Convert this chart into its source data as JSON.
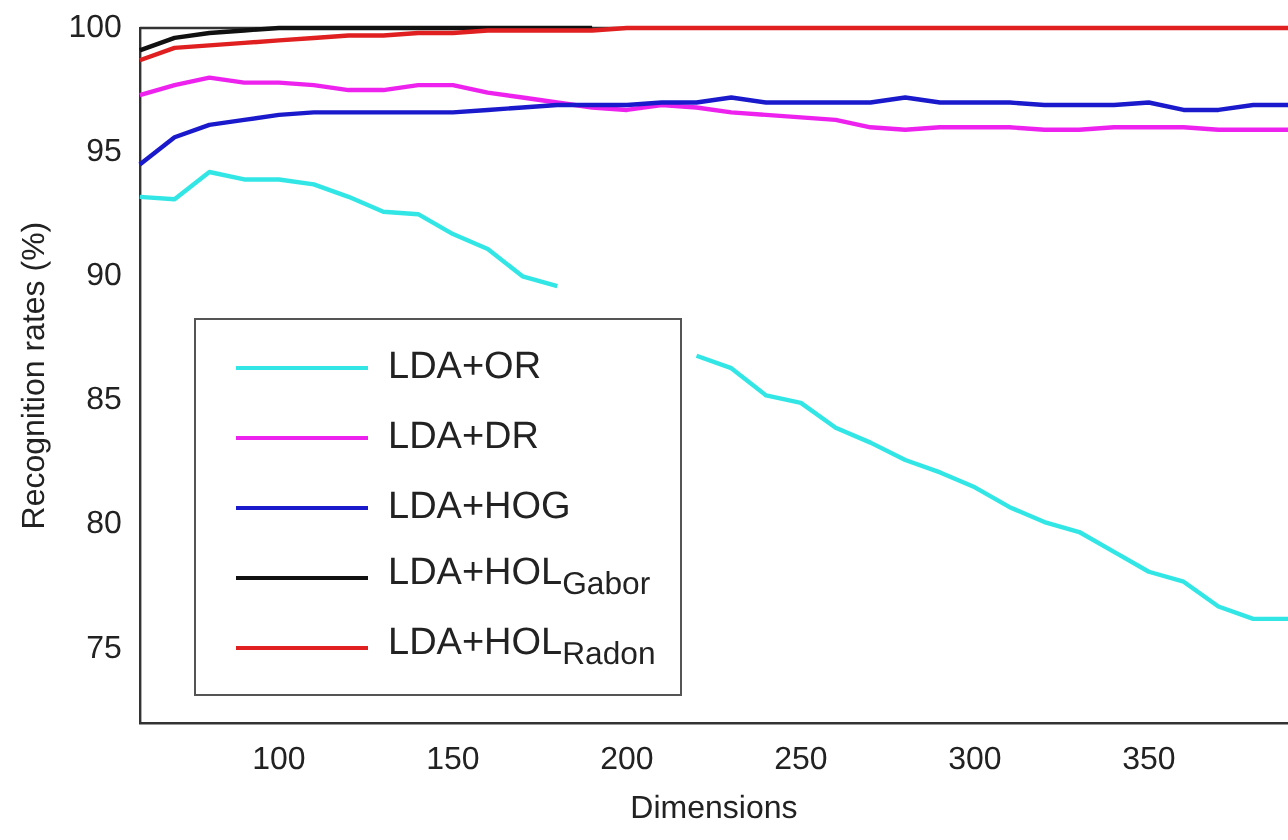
{
  "chart_data": {
    "type": "line",
    "xlabel": "Dimensions",
    "ylabel": "Recognition rates (%)",
    "x": [
      60,
      70,
      80,
      90,
      100,
      110,
      120,
      130,
      140,
      150,
      160,
      170,
      180,
      190,
      200,
      210,
      220,
      230,
      240,
      250,
      260,
      270,
      280,
      290,
      300,
      310,
      320,
      330,
      340,
      350,
      360,
      370,
      380,
      390
    ],
    "series": [
      {
        "name": "LDA+OR",
        "color": "#33e6e6",
        "values": [
          93.2,
          93.1,
          94.2,
          93.9,
          93.9,
          93.7,
          93.2,
          92.6,
          92.5,
          91.7,
          91.1,
          90.0,
          89.6,
          null,
          null,
          null,
          86.8,
          86.3,
          85.2,
          84.9,
          83.9,
          83.3,
          82.6,
          82.1,
          81.5,
          80.7,
          80.1,
          79.7,
          78.9,
          78.1,
          77.7,
          76.7,
          76.2,
          76.2
        ]
      },
      {
        "name": "LDA+DR",
        "color": "#ee22ee",
        "values": [
          97.3,
          97.7,
          98.0,
          97.8,
          97.8,
          97.7,
          97.5,
          97.5,
          97.7,
          97.7,
          97.4,
          97.2,
          97.0,
          96.8,
          96.7,
          96.9,
          96.8,
          96.6,
          96.5,
          96.4,
          96.3,
          96.0,
          95.9,
          96.0,
          96.0,
          96.0,
          95.9,
          95.9,
          96.0,
          96.0,
          96.0,
          95.9,
          95.9,
          95.9
        ]
      },
      {
        "name": "LDA+HOG",
        "color": "#1a1acc",
        "values": [
          94.5,
          95.6,
          96.1,
          96.3,
          96.5,
          96.6,
          96.6,
          96.6,
          96.6,
          96.6,
          96.7,
          96.8,
          96.9,
          96.9,
          96.9,
          97.0,
          97.0,
          97.2,
          97.0,
          97.0,
          97.0,
          97.0,
          97.2,
          97.0,
          97.0,
          97.0,
          96.9,
          96.9,
          96.9,
          97.0,
          96.7,
          96.7,
          96.9,
          96.9
        ]
      },
      {
        "name": "LDA+HOL$_{Gabor}$",
        "color": "#111111",
        "values": [
          99.1,
          99.6,
          99.8,
          99.9,
          100,
          100,
          100,
          100,
          100,
          100,
          100,
          100,
          100,
          100,
          null,
          null,
          null,
          null,
          null,
          null,
          null,
          null,
          null,
          null,
          null,
          null,
          null,
          null,
          null,
          null,
          null,
          null,
          null,
          null
        ]
      },
      {
        "name": "LDA+HOL$_{Radon}$",
        "color": "#e02020",
        "values": [
          98.7,
          99.2,
          99.3,
          99.4,
          99.5,
          99.6,
          99.7,
          99.7,
          99.8,
          99.8,
          99.9,
          99.9,
          99.9,
          99.9,
          100,
          100,
          100,
          100,
          100,
          100,
          100,
          100,
          100,
          100,
          100,
          100,
          100,
          100,
          100,
          100,
          100,
          100,
          100,
          100
        ]
      }
    ],
    "xlim": [
      60,
      390
    ],
    "ylim": [
      72,
      100
    ],
    "xticks": [
      100,
      150,
      200,
      250,
      300,
      350
    ],
    "yticks": [
      75,
      80,
      85,
      90,
      95,
      100
    ],
    "grid": false,
    "legend": "bottom left",
    "marker": "none",
    "line_style": "solid"
  }
}
